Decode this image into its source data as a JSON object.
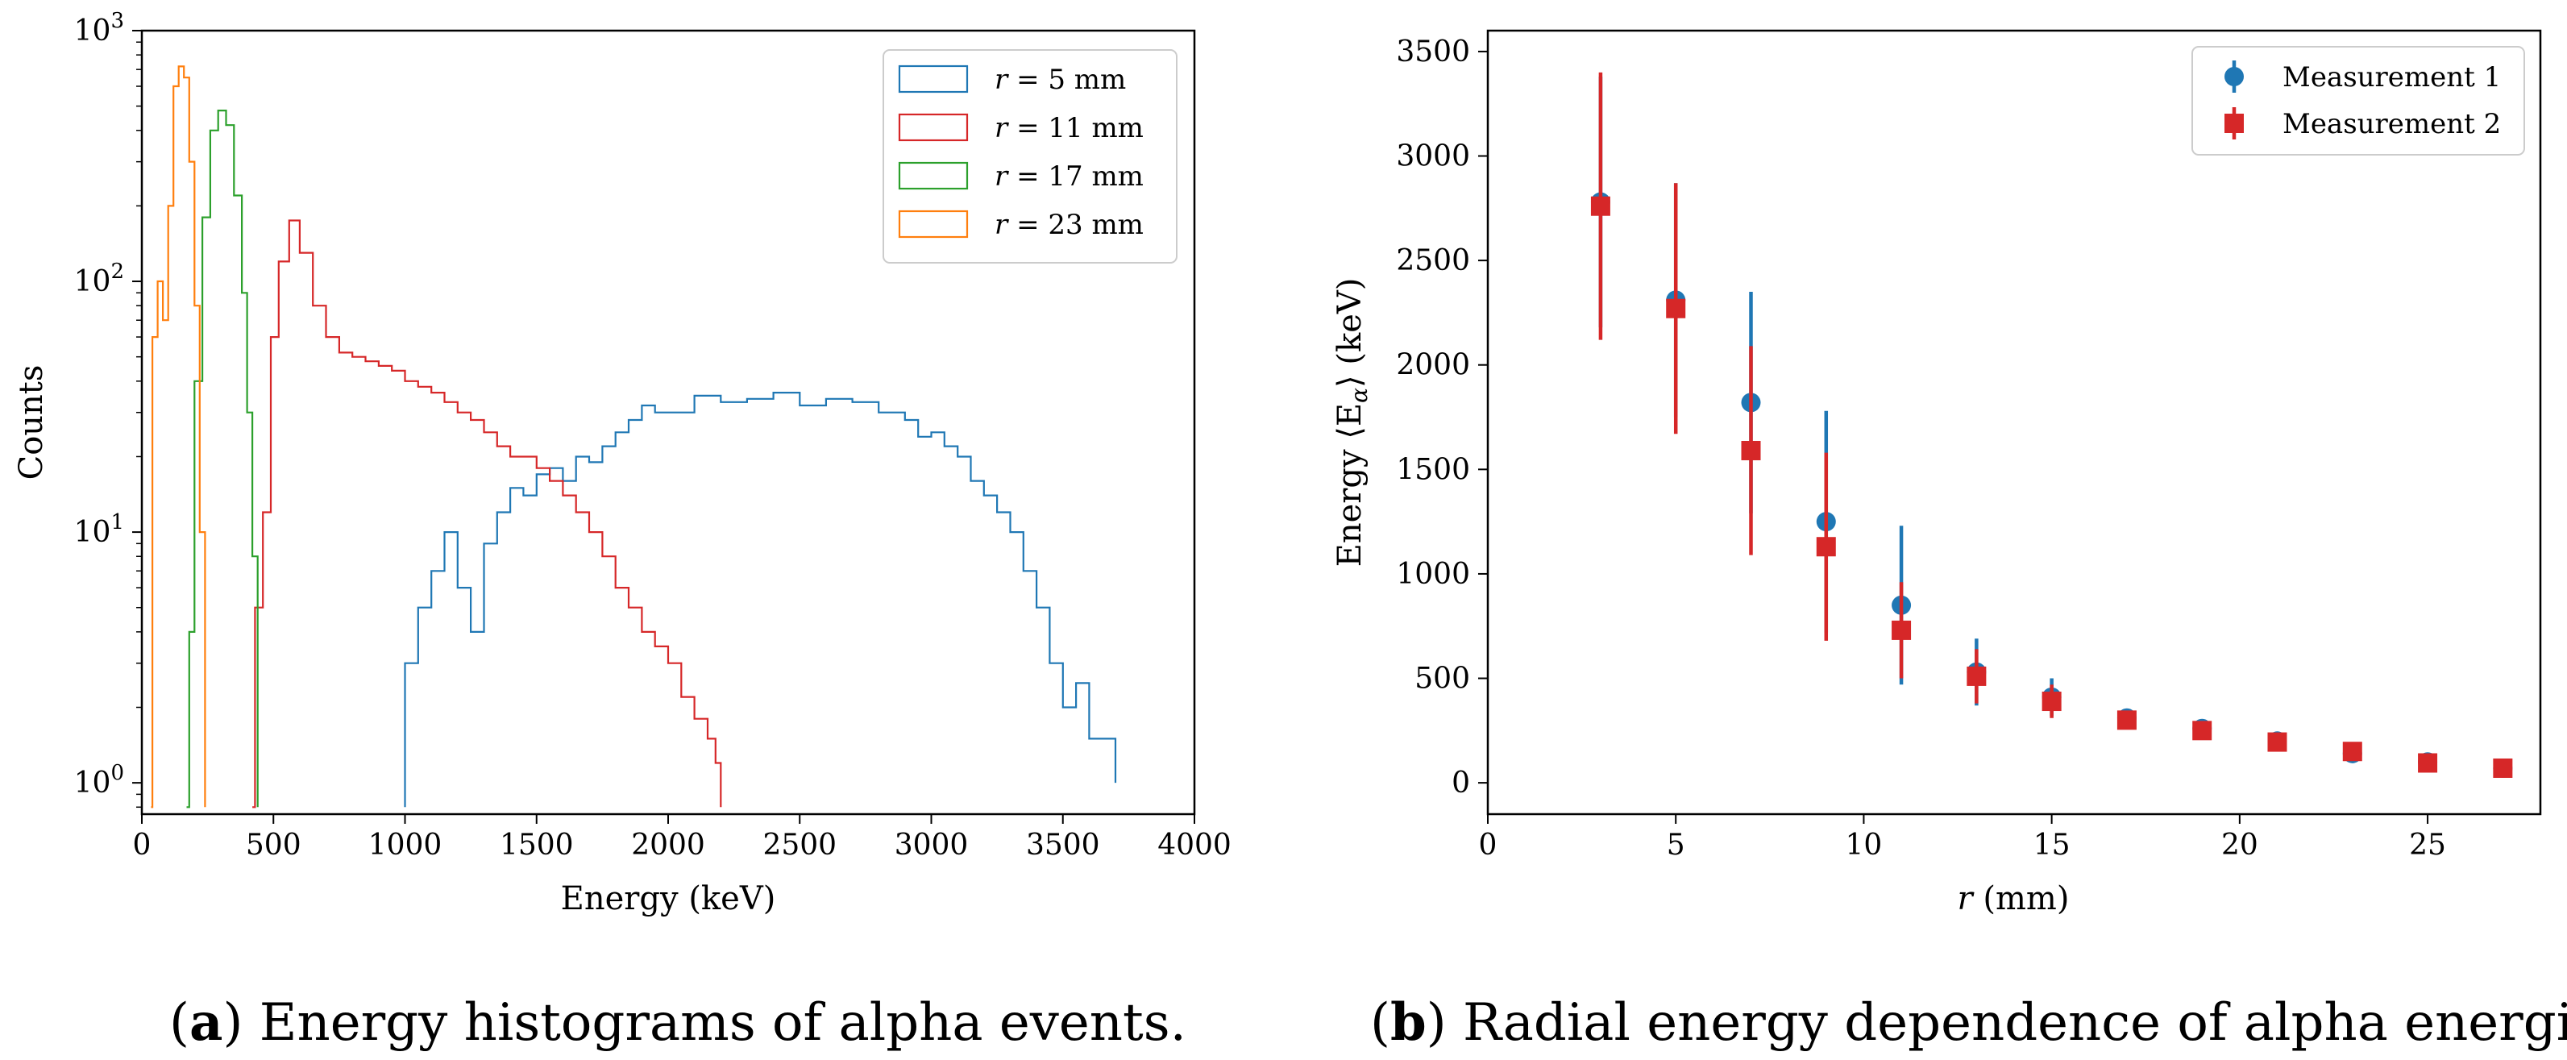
{
  "colors": {
    "r5": "#1f77b4",
    "r11": "#d62728",
    "r17": "#2ca02c",
    "r23": "#ff7f0e"
  },
  "caption_a": {
    "letter": "a",
    "text": "Energy histograms of alpha events."
  },
  "caption_b": {
    "letter": "b",
    "text": "Radial energy dependence of alpha energies."
  },
  "chart_data": [
    {
      "type": "histogram",
      "title": "",
      "xlabel": "Energy (keV)",
      "ylabel": "Counts",
      "xlim": [
        0,
        4000
      ],
      "yscale": "log",
      "ylim": [
        0.75,
        1000
      ],
      "xticks": [
        0,
        500,
        1000,
        1500,
        2000,
        2500,
        3000,
        3500,
        4000
      ],
      "yticks": [
        {
          "value": 1,
          "base": "10",
          "exp": "0"
        },
        {
          "value": 10,
          "base": "10",
          "exp": "1"
        },
        {
          "value": 100,
          "base": "10",
          "exp": "2"
        },
        {
          "value": 1000,
          "base": "10",
          "exp": "3"
        }
      ],
      "legend_position": "top-right",
      "series": [
        {
          "name": "r = 5 mm",
          "r_value": "5",
          "unit": "mm",
          "color_key": "r5",
          "points": [
            [
              1000,
              0.8
            ],
            [
              1000,
              3
            ],
            [
              1050,
              5
            ],
            [
              1100,
              7
            ],
            [
              1150,
              10
            ],
            [
              1200,
              6
            ],
            [
              1250,
              4
            ],
            [
              1300,
              9
            ],
            [
              1350,
              12
            ],
            [
              1400,
              15
            ],
            [
              1450,
              14
            ],
            [
              1500,
              17
            ],
            [
              1550,
              18
            ],
            [
              1600,
              16
            ],
            [
              1650,
              20
            ],
            [
              1700,
              19
            ],
            [
              1750,
              22
            ],
            [
              1800,
              25
            ],
            [
              1850,
              28
            ],
            [
              1900,
              32
            ],
            [
              1950,
              30
            ],
            [
              2000,
              30
            ],
            [
              2100,
              35
            ],
            [
              2200,
              33
            ],
            [
              2300,
              34
            ],
            [
              2400,
              36
            ],
            [
              2500,
              32
            ],
            [
              2600,
              34
            ],
            [
              2700,
              33
            ],
            [
              2800,
              30
            ],
            [
              2900,
              28
            ],
            [
              2950,
              24
            ],
            [
              3000,
              25
            ],
            [
              3050,
              22
            ],
            [
              3100,
              20
            ],
            [
              3150,
              16
            ],
            [
              3200,
              14
            ],
            [
              3250,
              12
            ],
            [
              3300,
              10
            ],
            [
              3350,
              7
            ],
            [
              3400,
              5
            ],
            [
              3450,
              3
            ],
            [
              3500,
              2
            ],
            [
              3550,
              2.5
            ],
            [
              3600,
              1.5
            ],
            [
              3650,
              1.5
            ],
            [
              3700,
              1
            ]
          ]
        },
        {
          "name": "r = 11 mm",
          "r_value": "11",
          "unit": "mm",
          "color_key": "r11",
          "points": [
            [
              420,
              0.8
            ],
            [
              430,
              5
            ],
            [
              460,
              12
            ],
            [
              490,
              60
            ],
            [
              520,
              120
            ],
            [
              560,
              175
            ],
            [
              600,
              130
            ],
            [
              650,
              80
            ],
            [
              700,
              60
            ],
            [
              750,
              52
            ],
            [
              800,
              50
            ],
            [
              850,
              48
            ],
            [
              900,
              46
            ],
            [
              950,
              44
            ],
            [
              1000,
              40
            ],
            [
              1050,
              38
            ],
            [
              1100,
              36
            ],
            [
              1150,
              33
            ],
            [
              1200,
              30
            ],
            [
              1250,
              28
            ],
            [
              1300,
              25
            ],
            [
              1350,
              22
            ],
            [
              1400,
              20
            ],
            [
              1450,
              20
            ],
            [
              1500,
              18
            ],
            [
              1550,
              16
            ],
            [
              1600,
              14
            ],
            [
              1650,
              12
            ],
            [
              1700,
              10
            ],
            [
              1750,
              8
            ],
            [
              1800,
              6
            ],
            [
              1850,
              5
            ],
            [
              1900,
              4
            ],
            [
              1950,
              3.5
            ],
            [
              2000,
              3
            ],
            [
              2050,
              2.2
            ],
            [
              2100,
              1.8
            ],
            [
              2150,
              1.5
            ],
            [
              2180,
              1.2
            ],
            [
              2200,
              0.8
            ]
          ]
        },
        {
          "name": "r = 17 mm",
          "r_value": "17",
          "unit": "mm",
          "color_key": "r17",
          "points": [
            [
              170,
              0.8
            ],
            [
              180,
              4
            ],
            [
              200,
              40
            ],
            [
              230,
              180
            ],
            [
              260,
              400
            ],
            [
              290,
              480
            ],
            [
              320,
              420
            ],
            [
              350,
              220
            ],
            [
              380,
              90
            ],
            [
              400,
              30
            ],
            [
              420,
              8
            ],
            [
              440,
              0.8
            ]
          ]
        },
        {
          "name": "r = 23 mm",
          "r_value": "23",
          "unit": "mm",
          "color_key": "r23",
          "points": [
            [
              35,
              0.8
            ],
            [
              40,
              60
            ],
            [
              60,
              100
            ],
            [
              80,
              70
            ],
            [
              100,
              200
            ],
            [
              120,
              600
            ],
            [
              140,
              720
            ],
            [
              160,
              650
            ],
            [
              180,
              300
            ],
            [
              200,
              80
            ],
            [
              220,
              10
            ],
            [
              240,
              0.8
            ]
          ]
        }
      ]
    },
    {
      "type": "scatter",
      "title": "",
      "xlabel": "(mm)",
      "xlabel_var": "r",
      "ylabel": "Energy ⟨E_α⟩ (keV)",
      "ylabel_pre": "Energy ⟨E",
      "ylabel_sub": "α",
      "ylabel_post": "⟩ (keV)",
      "xlim": [
        0,
        28
      ],
      "ylim": [
        -150,
        3600
      ],
      "xticks": [
        0,
        5,
        10,
        15,
        20,
        25
      ],
      "yticks": [
        0,
        500,
        1000,
        1500,
        2000,
        2500,
        3000,
        3500
      ],
      "legend_position": "top-right",
      "series": [
        {
          "name": "Measurement 1",
          "color": "#1f77b4",
          "marker": "circle",
          "x": [
            3,
            5,
            7,
            9,
            11,
            13,
            15,
            17,
            19,
            21,
            23,
            25,
            27
          ],
          "y": [
            2780,
            2310,
            1820,
            1250,
            850,
            530,
            410,
            310,
            260,
            200,
            140,
            100,
            70
          ],
          "err": [
            600,
            560,
            530,
            530,
            380,
            160,
            90,
            30,
            25,
            20,
            15,
            10,
            10
          ]
        },
        {
          "name": "Measurement 2",
          "color": "#d62728",
          "marker": "square",
          "x": [
            3,
            5,
            7,
            9,
            11,
            13,
            15,
            17,
            19,
            21,
            23,
            25,
            27
          ],
          "y": [
            2760,
            2270,
            1590,
            1130,
            730,
            510,
            390,
            300,
            250,
            195,
            150,
            95,
            70
          ],
          "err": [
            640,
            600,
            500,
            450,
            230,
            130,
            80,
            20,
            20,
            15,
            15,
            10,
            10
          ]
        }
      ]
    }
  ]
}
